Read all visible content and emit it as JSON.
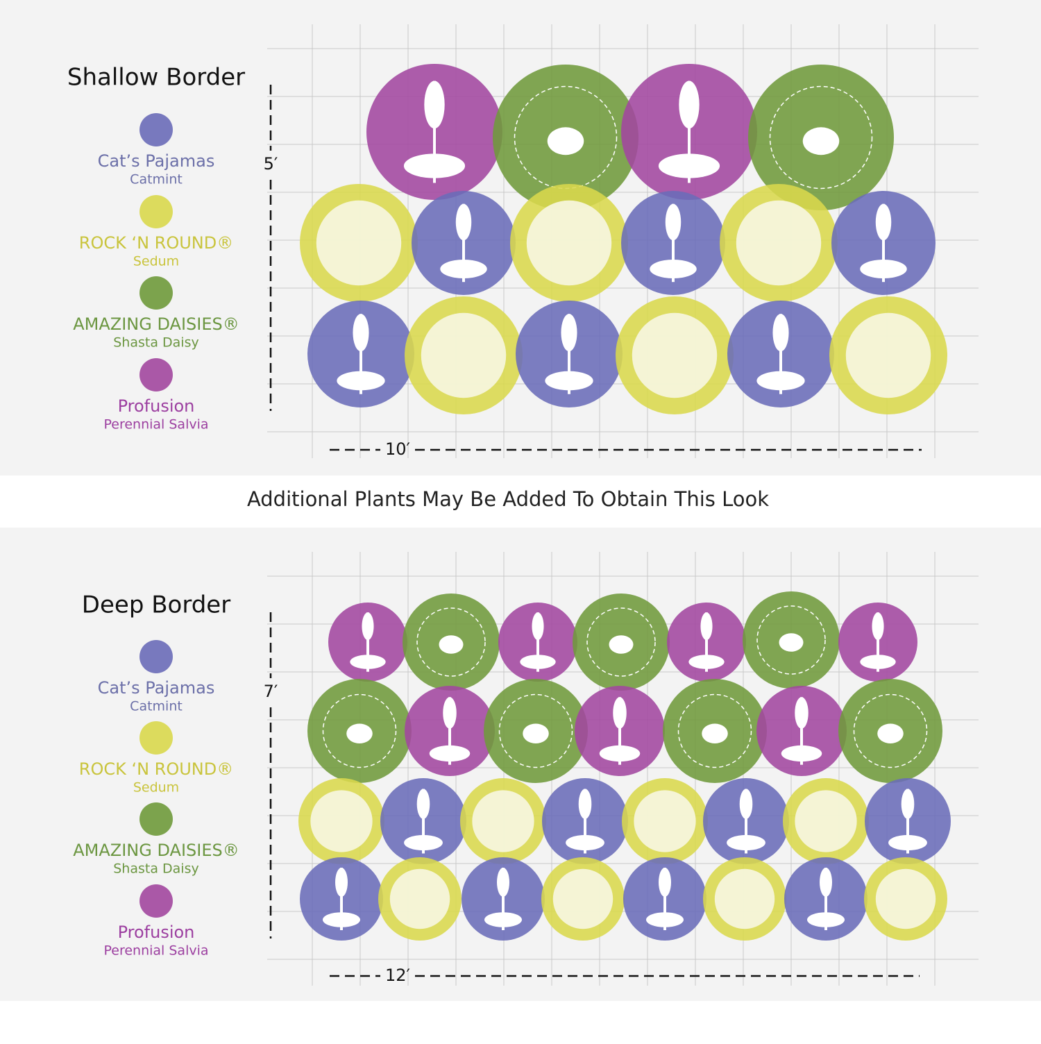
{
  "caption": "Additional Plants May Be Added To Obtain This Look",
  "plans": [
    {
      "title": "Shallow Border",
      "height": "5′",
      "width": "10′",
      "legend": [
        {
          "name": "Cat’s Pajamas",
          "kind": "Catmint"
        },
        {
          "name": "ROCK ‘N ROUND®",
          "kind": "Sedum"
        },
        {
          "name": "AMAZING DAISIES®",
          "kind": "Shasta Daisy"
        },
        {
          "name": "Profusion",
          "kind": "Perennial Salvia"
        }
      ]
    },
    {
      "title": "Deep Border",
      "height": "7′",
      "width": "12′",
      "legend": [
        {
          "name": "Cat’s Pajamas",
          "kind": "Catmint"
        },
        {
          "name": "ROCK ‘N ROUND®",
          "kind": "Sedum"
        },
        {
          "name": "AMAZING DAISIES®",
          "kind": "Shasta Daisy"
        },
        {
          "name": "Profusion",
          "kind": "Perennial Salvia"
        }
      ]
    }
  ]
}
